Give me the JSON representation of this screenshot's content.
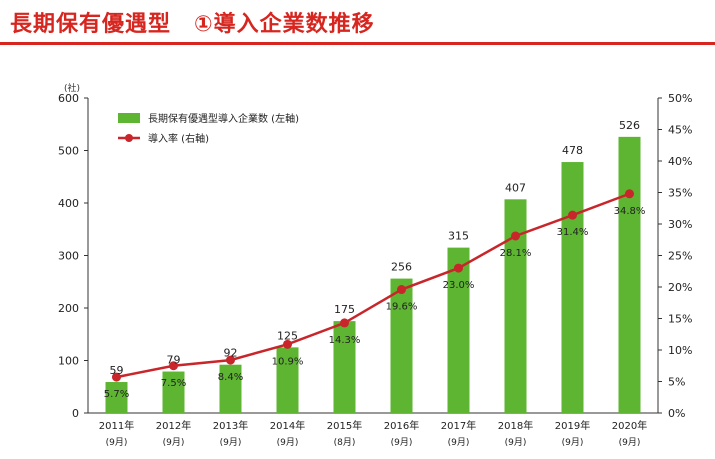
{
  "header": {
    "title": "長期保有優遇型　①導入企業数推移"
  },
  "chart_data": {
    "type": "bar+line",
    "y_left_unit": "(社)",
    "categories": [
      "2011年",
      "2012年",
      "2013年",
      "2014年",
      "2015年",
      "2016年",
      "2017年",
      "2018年",
      "2019年",
      "2020年"
    ],
    "subcategories": [
      "(9月)",
      "(9月)",
      "(9月)",
      "(9月)",
      "(8月)",
      "(9月)",
      "(9月)",
      "(9月)",
      "(9月)",
      "(9月)"
    ],
    "series": [
      {
        "name": "長期保有優遇型導入企業数 (左軸)",
        "type": "bar",
        "axis": "left",
        "color": "#5db531",
        "values": [
          59,
          79,
          92,
          125,
          175,
          256,
          315,
          407,
          478,
          526
        ],
        "labels": [
          "59",
          "79",
          "92",
          "125",
          "175",
          "256",
          "315",
          "407",
          "478",
          "526"
        ]
      },
      {
        "name": "導入率 (右軸)",
        "type": "line",
        "axis": "right",
        "color": "#c8262b",
        "values": [
          5.7,
          7.5,
          8.4,
          10.9,
          14.3,
          19.6,
          23.0,
          28.1,
          31.4,
          34.8
        ],
        "labels": [
          "5.7%",
          "7.5%",
          "8.4%",
          "10.9%",
          "14.3%",
          "19.6%",
          "23.0%",
          "28.1%",
          "31.4%",
          "34.8%"
        ]
      }
    ],
    "y_left": {
      "range": [
        0,
        600
      ],
      "ticks": [
        0,
        100,
        200,
        300,
        400,
        500,
        600
      ]
    },
    "y_right": {
      "range": [
        0,
        50
      ],
      "ticks": [
        "0%",
        "5%",
        "10%",
        "15%",
        "20%",
        "25%",
        "30%",
        "35%",
        "40%",
        "45%",
        "50%"
      ]
    },
    "legend_position": "top-left",
    "grid": false
  }
}
